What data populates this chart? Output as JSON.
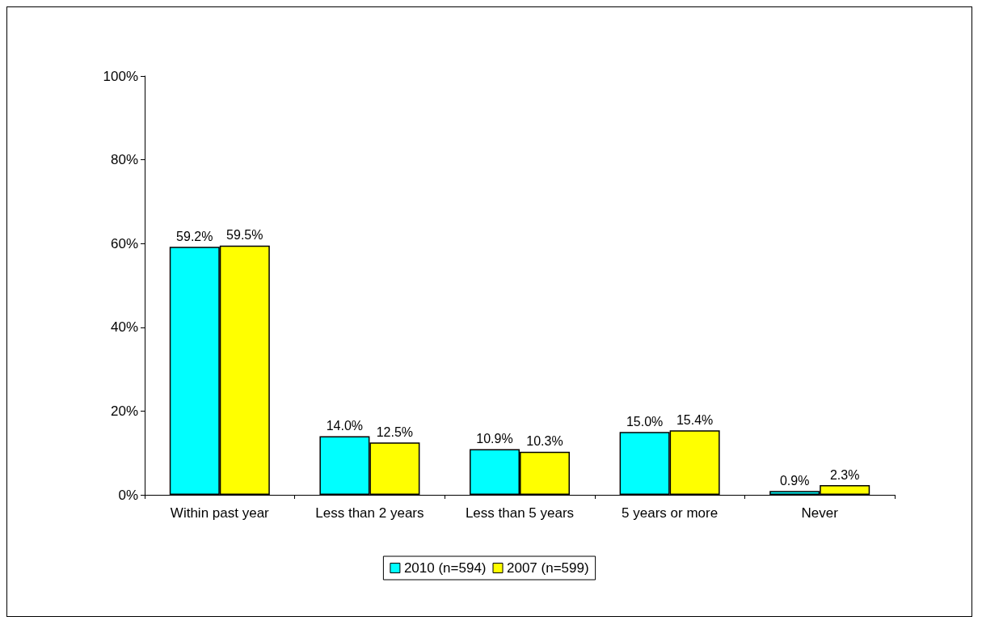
{
  "chart_data": {
    "type": "bar",
    "categories": [
      "Within past year",
      "Less than 2 years",
      "Less than 5 years",
      "5 years or more",
      "Never"
    ],
    "series": [
      {
        "name": "2010 (n=594)",
        "color": "#00ffff",
        "values": [
          59.2,
          14.0,
          10.9,
          15.0,
          0.9
        ],
        "value_labels": [
          "59.2%",
          "14.0%",
          "10.9%",
          "15.0%",
          "0.9%"
        ]
      },
      {
        "name": "2007 (n=599)",
        "color": "#ffff00",
        "values": [
          59.5,
          12.5,
          10.3,
          15.4,
          2.3
        ],
        "value_labels": [
          "59.5%",
          "12.5%",
          "10.3%",
          "15.4%",
          "2.3%"
        ]
      }
    ],
    "ylim": [
      0,
      100
    ],
    "yticks": [
      {
        "value": 0,
        "label": "0%"
      },
      {
        "value": 20,
        "label": "20%"
      },
      {
        "value": 40,
        "label": "40%"
      },
      {
        "value": 60,
        "label": "60%"
      },
      {
        "value": 80,
        "label": "80%"
      },
      {
        "value": 100,
        "label": "100%"
      }
    ],
    "grid": false,
    "legend": "bottom"
  }
}
